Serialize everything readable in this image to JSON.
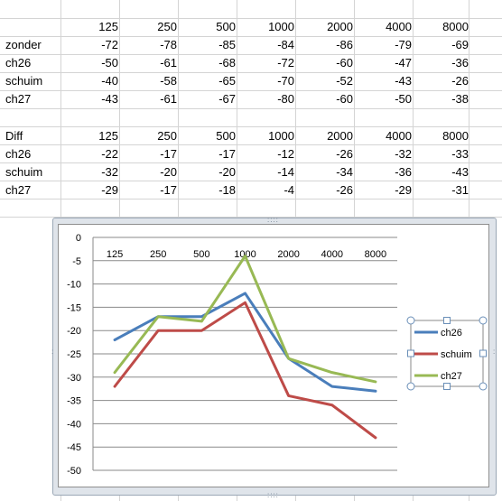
{
  "table1": {
    "headers": [
      "125",
      "250",
      "500",
      "1000",
      "2000",
      "4000",
      "8000"
    ],
    "rows": [
      {
        "label": "zonder",
        "values": [
          "-72",
          "-78",
          "-85",
          "-84",
          "-86",
          "-79",
          "-69"
        ]
      },
      {
        "label": "ch26",
        "values": [
          "-50",
          "-61",
          "-68",
          "-72",
          "-60",
          "-47",
          "-36"
        ]
      },
      {
        "label": "schuim",
        "values": [
          "-40",
          "-58",
          "-65",
          "-70",
          "-52",
          "-43",
          "-26"
        ]
      },
      {
        "label": "ch27",
        "values": [
          "-43",
          "-61",
          "-67",
          "-80",
          "-60",
          "-50",
          "-38"
        ]
      }
    ]
  },
  "table2": {
    "label": "Diff",
    "headers": [
      "125",
      "250",
      "500",
      "1000",
      "2000",
      "4000",
      "8000"
    ],
    "rows": [
      {
        "label": "ch26",
        "values": [
          "-22",
          "-17",
          "-17",
          "-12",
          "-26",
          "-32",
          "-33"
        ]
      },
      {
        "label": "schuim",
        "values": [
          "-32",
          "-20",
          "-20",
          "-14",
          "-34",
          "-36",
          "-43"
        ]
      },
      {
        "label": "ch27",
        "values": [
          "-29",
          "-17",
          "-18",
          "-4",
          "-26",
          "-29",
          "-31"
        ]
      }
    ]
  },
  "chart_data": {
    "type": "line",
    "categories": [
      "125",
      "250",
      "500",
      "1000",
      "2000",
      "4000",
      "8000"
    ],
    "series": [
      {
        "name": "ch26",
        "color": "#4a7ebb",
        "values": [
          -22,
          -17,
          -17,
          -12,
          -26,
          -32,
          -33
        ]
      },
      {
        "name": "schuim",
        "color": "#be4b48",
        "values": [
          -32,
          -20,
          -20,
          -14,
          -34,
          -36,
          -43
        ]
      },
      {
        "name": "ch27",
        "color": "#98b954",
        "values": [
          -29,
          -17,
          -18,
          -4,
          -26,
          -29,
          -31
        ]
      }
    ],
    "ylim": [
      -50,
      0
    ],
    "ytick_step": 5,
    "ytick_labels": [
      "0",
      "-5",
      "-10",
      "-15",
      "-20",
      "-25",
      "-30",
      "-35",
      "-40",
      "-45",
      "-50"
    ],
    "grid": true,
    "legend": "right"
  }
}
